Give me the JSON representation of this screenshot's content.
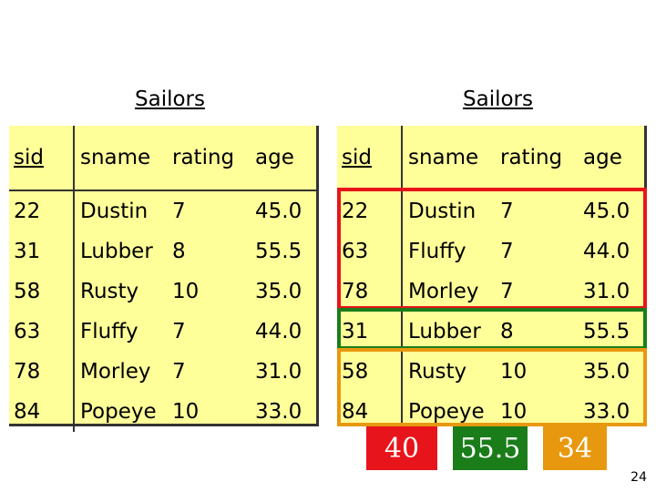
{
  "left_table": {
    "title": "Sailors",
    "headers": [
      "sid",
      "sname",
      "rating",
      "age"
    ],
    "rows": [
      [
        "22",
        "Dustin",
        "7",
        "45.0"
      ],
      [
        "31",
        "Lubber",
        "8",
        "55.5"
      ],
      [
        "58",
        "Rusty",
        "10",
        "35.0"
      ],
      [
        "63",
        "Fluffy",
        "7",
        "44.0"
      ],
      [
        "78",
        "Morley",
        "7",
        "31.0"
      ],
      [
        "84",
        "Popeye",
        "10",
        "33.0"
      ]
    ]
  },
  "right_table": {
    "title": "Sailors",
    "headers": [
      "sid",
      "sname",
      "rating",
      "age"
    ],
    "rows": [
      [
        "22",
        "Dustin",
        "7",
        "45.0"
      ],
      [
        "63",
        "Fluffy",
        "7",
        "44.0"
      ],
      [
        "78",
        "Morley",
        "7",
        "31.0"
      ],
      [
        "31",
        "Lubber",
        "8",
        "55.5"
      ],
      [
        "58",
        "Rusty",
        "10",
        "35.0"
      ],
      [
        "84",
        "Popeye",
        "10",
        "33.0"
      ]
    ]
  },
  "groups": [
    {
      "color": "#e8141b",
      "result": "40"
    },
    {
      "color": "#1a7d1a",
      "result": "55.5"
    },
    {
      "color": "#e8980f",
      "result": "34"
    }
  ],
  "page_number": "24"
}
